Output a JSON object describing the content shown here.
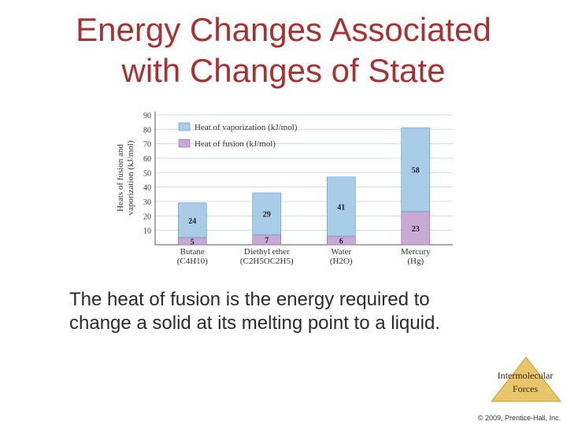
{
  "slide": {
    "title_line1": "Energy Changes Associated",
    "title_line2": "with Changes of State",
    "body_line1": "The heat of fusion is the energy required to",
    "body_line2": "change a solid at its melting point to a liquid.",
    "badge_line1": "Intermolecular",
    "badge_line2": "Forces",
    "copyright": "© 2009, Prentice-Hall, Inc."
  },
  "colors": {
    "title": "#a83232",
    "vaporization": "#a9cce9",
    "fusion": "#c8a8d4",
    "grid": "#c9dcec",
    "badge": "#e8c56a"
  },
  "chart_data": {
    "type": "bar",
    "stacked": true,
    "ylabel_line1": "Heats of fusion and",
    "ylabel_line2": "vaporization (kJ/mol)",
    "ylim": [
      0,
      90
    ],
    "yticks": [
      "10",
      "20",
      "30",
      "40",
      "50",
      "60",
      "70",
      "80",
      "90"
    ],
    "grid": true,
    "legend_position": "top-left",
    "categories": [
      {
        "name": "Butane",
        "formula": "(C4H10)"
      },
      {
        "name": "Diethyl ether",
        "formula": "(C2H5OC2H5)"
      },
      {
        "name": "Water",
        "formula": "(H2O)"
      },
      {
        "name": "Mercury",
        "formula": "(Hg)"
      }
    ],
    "series": [
      {
        "name": "Heat of fusion (kJ/mol)",
        "values": [
          5,
          7,
          6,
          23
        ]
      },
      {
        "name": "Heat of vaporization (kJ/mol)",
        "values": [
          24,
          29,
          41,
          58
        ]
      }
    ]
  }
}
